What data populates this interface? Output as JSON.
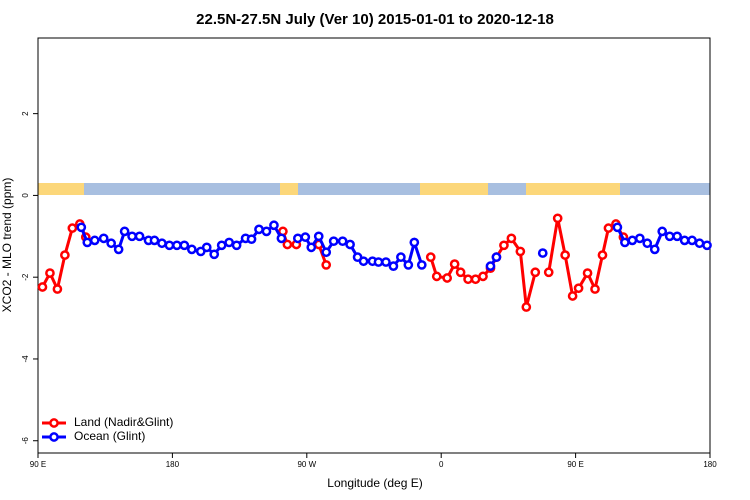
{
  "chart_data": {
    "type": "line",
    "title": "22.5N-27.5N July (Ver 10)   2015-01-01 to 2020-12-18",
    "x_label": "Longitude (deg E)",
    "y_label": "XCO2 - MLO trend (ppm)",
    "xlim": [
      90,
      540
    ],
    "ylim": [
      -6.3,
      3.85
    ],
    "xticks": [
      {
        "value": 90,
        "label": "90 E"
      },
      180,
      {
        "value": 270,
        "label": "90 W"
      },
      {
        "value": 360,
        "label": "0"
      },
      {
        "value": 450,
        "label": "90 E"
      },
      {
        "value": 540,
        "label": "180"
      }
    ],
    "yticks": [
      -6,
      -4,
      -2,
      0,
      2
    ],
    "legend": "bottom-left",
    "series": [
      {
        "name": "Land (Nadir&Glint)",
        "color": "#ff0000",
        "x": [
          93,
          98,
          103,
          108,
          113,
          118,
          122,
          null,
          254,
          257,
          263,
          null,
          278,
          283,
          null,
          353,
          357,
          364,
          369,
          373,
          378,
          383,
          388,
          393,
          397,
          402,
          407,
          413,
          417,
          423,
          null,
          432,
          438,
          443,
          448,
          452,
          458,
          463,
          468,
          472,
          477,
          482
        ],
        "values": [
          -2.24,
          -1.9,
          -2.29,
          -1.46,
          -0.8,
          -0.7,
          -1.02,
          null,
          -0.88,
          -1.2,
          -1.2,
          null,
          -1.2,
          -1.7,
          null,
          -1.51,
          -1.98,
          -2.02,
          -1.68,
          -1.88,
          -2.05,
          -2.05,
          -1.98,
          -1.78,
          -1.51,
          -1.22,
          -1.05,
          -1.37,
          -2.73,
          -1.88,
          null,
          -1.88,
          -0.56,
          -1.46,
          -2.46,
          -2.27,
          -1.9,
          -2.29,
          -1.46,
          -0.8,
          -0.7,
          -1.02
        ]
      },
      {
        "name": "Ocean (Glint)",
        "color": "#0000ff",
        "x": [
          119,
          123,
          128,
          134,
          139,
          144,
          148,
          153,
          158,
          164,
          168,
          173,
          178,
          183,
          188,
          193,
          199,
          203,
          208,
          213,
          218,
          223,
          229,
          233,
          238,
          243,
          248,
          253,
          null,
          264,
          269,
          273,
          278,
          283,
          288,
          294,
          299,
          304,
          308,
          314,
          318,
          323,
          328,
          333,
          338,
          342,
          347,
          null,
          393,
          397,
          null,
          428,
          null,
          478,
          483,
          488,
          493,
          498,
          503,
          508,
          513,
          518,
          523,
          528,
          533,
          538
        ],
        "values": [
          -0.78,
          -1.15,
          -1.1,
          -1.05,
          -1.17,
          -1.32,
          -0.88,
          -1.0,
          -1.0,
          -1.1,
          -1.1,
          -1.17,
          -1.22,
          -1.22,
          -1.22,
          -1.32,
          -1.37,
          -1.27,
          -1.44,
          -1.22,
          -1.15,
          -1.22,
          -1.05,
          -1.07,
          -0.83,
          -0.88,
          -0.73,
          -1.05,
          null,
          -1.05,
          -1.02,
          -1.27,
          -1.0,
          -1.39,
          -1.12,
          -1.12,
          -1.2,
          -1.51,
          -1.61,
          -1.61,
          -1.63,
          -1.63,
          -1.73,
          -1.51,
          -1.7,
          -1.15,
          -1.7,
          null,
          -1.73,
          -1.51,
          null,
          -1.41,
          null,
          -0.78,
          -1.15,
          -1.1,
          -1.05,
          -1.17,
          -1.32,
          -0.88,
          -1.0,
          -1.0,
          -1.1,
          -1.1,
          -1.17,
          -1.22
        ]
      }
    ]
  }
}
